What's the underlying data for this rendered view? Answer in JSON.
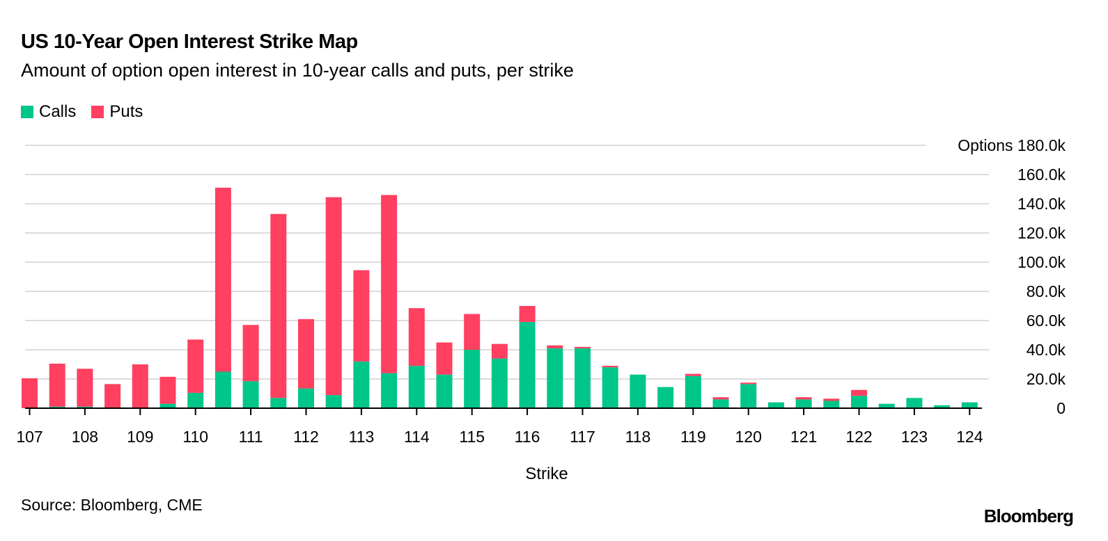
{
  "title": "US 10-Year Open Interest Strike Map",
  "subtitle": "Amount of option open interest in 10-year calls and puts, per strike",
  "source": "Source: Bloomberg, CME",
  "logo": "Bloomberg",
  "colors": {
    "calls": "#00c68a",
    "puts": "#ff4060",
    "grid": "#dcdcdc",
    "axis": "#000000"
  },
  "chart_data": {
    "type": "bar",
    "stacked": true,
    "xlabel": "Strike",
    "ylabel": "Options",
    "ylim": [
      0,
      180000
    ],
    "yticks": [
      0,
      20000,
      40000,
      60000,
      80000,
      100000,
      120000,
      140000,
      160000,
      180000
    ],
    "ytick_labels": [
      "0",
      "20.0k",
      "40.0k",
      "60.0k",
      "80.0k",
      "100.0k",
      "120.0k",
      "140.0k",
      "160.0k",
      "180.0k"
    ],
    "xtick_labels": [
      "107",
      "108",
      "109",
      "110",
      "111",
      "112",
      "113",
      "114",
      "115",
      "116",
      "117",
      "118",
      "119",
      "120",
      "121",
      "122",
      "123",
      "124"
    ],
    "grid": true,
    "legend": "top-left",
    "categories": [
      107,
      107.5,
      108,
      108.5,
      109,
      109.5,
      110,
      110.5,
      111,
      111.5,
      112,
      112.5,
      113,
      113.5,
      114,
      114.5,
      115,
      115.5,
      116,
      116.5,
      117,
      117.5,
      118,
      118.5,
      119,
      119.5,
      120,
      120.5,
      121,
      121.5,
      122,
      122.5,
      123,
      123.5,
      124
    ],
    "series": [
      {
        "name": "Calls",
        "values": [
          0,
          1000,
          1000,
          0,
          0,
          3000,
          10500,
          25000,
          18500,
          7000,
          13500,
          9000,
          32000,
          24000,
          29000,
          23000,
          40000,
          34000,
          59000,
          41000,
          41000,
          28000,
          23000,
          14500,
          22000,
          6000,
          16500,
          4000,
          6000,
          5000,
          8500,
          3000,
          7000,
          2000,
          4000
        ]
      },
      {
        "name": "Puts",
        "values": [
          20500,
          29500,
          26000,
          16500,
          30000,
          18500,
          36500,
          126000,
          38500,
          126000,
          47500,
          135500,
          62500,
          122000,
          39500,
          22000,
          24500,
          10000,
          11000,
          2000,
          1000,
          1000,
          0,
          0,
          1500,
          1500,
          1000,
          0,
          1500,
          1500,
          4000,
          0,
          0,
          0,
          0
        ]
      }
    ]
  }
}
